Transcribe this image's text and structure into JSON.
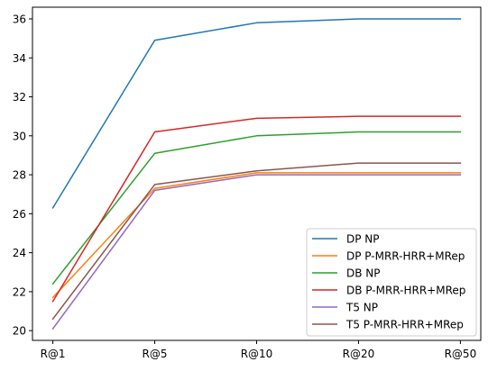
{
  "chart_data": {
    "type": "line",
    "title": "",
    "xlabel": "",
    "ylabel": "",
    "categories": [
      "R@1",
      "R@5",
      "R@10",
      "R@20",
      "R@50"
    ],
    "ylim": [
      19.5,
      36.6
    ],
    "yticks": [
      20,
      22,
      24,
      26,
      28,
      30,
      32,
      34,
      36
    ],
    "grid": false,
    "legend_position": "lower-right",
    "series": [
      {
        "name": "DP NP",
        "color": "#1f77b4",
        "values": [
          26.3,
          34.9,
          35.8,
          36.0,
          36.0
        ]
      },
      {
        "name": "DP P-MRR-HRR+MRep",
        "color": "#ff7f0e",
        "values": [
          21.7,
          27.3,
          28.1,
          28.1,
          28.1
        ]
      },
      {
        "name": "DB NP",
        "color": "#2ca02c",
        "values": [
          22.4,
          29.1,
          30.0,
          30.2,
          30.2
        ]
      },
      {
        "name": "DB P-MRR-HRR+MRep",
        "color": "#d62728",
        "values": [
          21.5,
          30.2,
          30.9,
          31.0,
          31.0
        ]
      },
      {
        "name": "T5 NP",
        "color": "#9467bd",
        "values": [
          20.1,
          27.2,
          28.0,
          28.0,
          28.0
        ]
      },
      {
        "name": "T5 P-MRR-HRR+MRep",
        "color": "#8c564b",
        "values": [
          20.6,
          27.5,
          28.2,
          28.6,
          28.6
        ]
      }
    ]
  }
}
